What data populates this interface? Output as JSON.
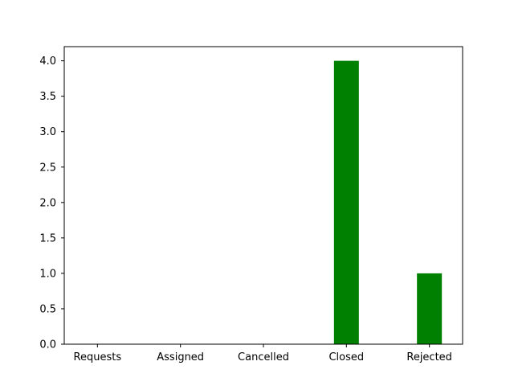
{
  "chart_data": {
    "type": "bar",
    "categories": [
      "Requests",
      "Assigned",
      "Cancelled",
      "Closed",
      "Rejected"
    ],
    "values": [
      0,
      0,
      0,
      4,
      1
    ],
    "ylim": [
      0,
      4.2
    ],
    "yticks": [
      "0.0",
      "0.5",
      "1.0",
      "1.5",
      "2.0",
      "2.5",
      "3.0",
      "3.5",
      "4.0"
    ],
    "grid": false,
    "bar_color": "#008000"
  }
}
